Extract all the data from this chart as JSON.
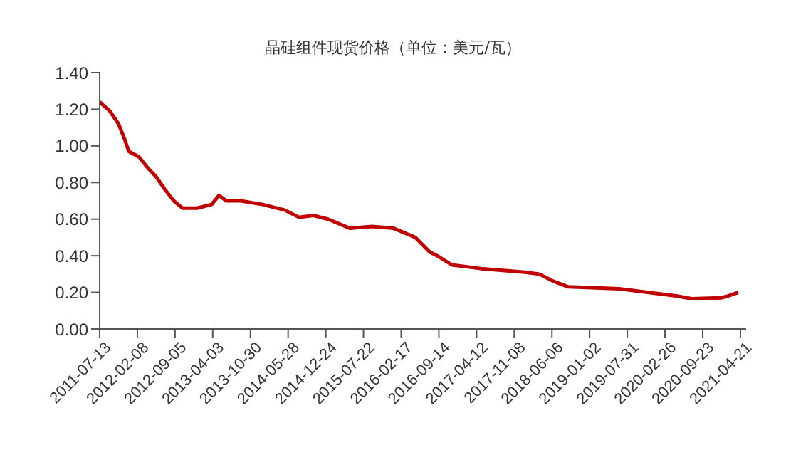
{
  "chart_data": {
    "type": "line",
    "title": "晶硅组件现货价格（单位：美元/瓦）",
    "x": [
      "2011-07-13",
      "2011-09-08",
      "2011-10-26",
      "2011-11-28",
      "2011-12-22",
      "2012-02-17",
      "2012-04-06",
      "2012-05-24",
      "2012-07-12",
      "2012-08-29",
      "2012-10-17",
      "2013-01-06",
      "2013-03-28",
      "2013-05-08",
      "2013-06-17",
      "2013-09-06",
      "2014-01-06",
      "2014-05-08",
      "2014-07-28",
      "2014-10-17",
      "2015-01-06",
      "2015-05-08",
      "2015-09-06",
      "2016-01-06",
      "2016-05-06",
      "2016-07-26",
      "2016-09-05",
      "2016-11-25",
      "2017-05-06",
      "2018-01-05",
      "2018-03-27",
      "2018-06-16",
      "2018-09-05",
      "2019-06-16",
      "2020-05-04",
      "2020-07-24",
      "2021-01-02",
      "2021-02-11",
      "2021-04-09"
    ],
    "series": [
      {
        "color": "#c00000",
        "values": [
          1.24,
          1.19,
          1.12,
          1.04,
          0.97,
          0.94,
          0.88,
          0.83,
          0.76,
          0.7,
          0.66,
          0.66,
          0.68,
          0.73,
          0.7,
          0.7,
          0.68,
          0.65,
          0.61,
          0.62,
          0.6,
          0.55,
          0.56,
          0.55,
          0.5,
          0.42,
          0.4,
          0.35,
          0.33,
          0.31,
          0.3,
          0.26,
          0.23,
          0.22,
          0.18,
          0.165,
          0.17,
          0.18,
          0.2
        ]
      }
    ],
    "xlim": [
      "2011-07-13",
      "2021-05-23"
    ],
    "xticks": [
      "2011-07-13",
      "2012-02-08",
      "2012-09-05",
      "2013-04-03",
      "2013-10-30",
      "2014-05-28",
      "2014-12-24",
      "2015-07-22",
      "2016-02-17",
      "2016-09-14",
      "2017-04-12",
      "2017-11-08",
      "2018-06-06",
      "2019-01-02",
      "2019-07-31",
      "2020-02-26",
      "2020-09-23",
      "2021-04-21"
    ],
    "ylim": [
      0,
      1.4
    ],
    "yticks": [
      {
        "value": 0,
        "label": "0.00"
      },
      {
        "value": 0.2,
        "label": "0.20"
      },
      {
        "value": 0.4,
        "label": "0.40"
      },
      {
        "value": 0.6,
        "label": "0.60"
      },
      {
        "value": 0.8,
        "label": "0.80"
      },
      {
        "value": 1.0,
        "label": "1.00"
      },
      {
        "value": 1.2,
        "label": "1.20"
      },
      {
        "value": 1.4,
        "label": "1.40"
      }
    ],
    "grid": false,
    "legend": false,
    "marker": "none",
    "line_style": "solid"
  }
}
